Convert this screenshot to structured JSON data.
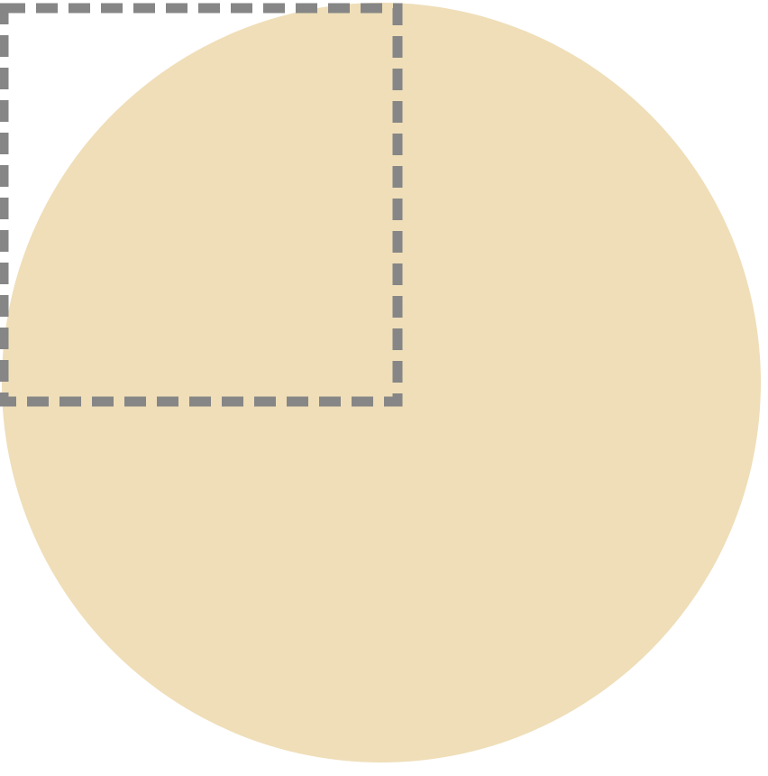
{
  "diagram": {
    "shapes": [
      {
        "kind": "circle",
        "fill": "#efdeb8"
      },
      {
        "kind": "square",
        "stroke": "#868686",
        "line_style": "dashed",
        "fill": "none"
      }
    ],
    "background": "#ffffff"
  }
}
